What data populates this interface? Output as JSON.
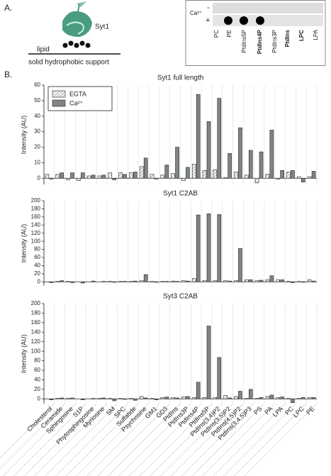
{
  "panel_a": {
    "label": "A.",
    "protein": "Syt1",
    "lipid": "lipid",
    "support": "solid hydrophobic support",
    "blot": {
      "condition": "Ca²⁺",
      "minus": "-",
      "plus": "+",
      "lanes": [
        "PC",
        "PE",
        "PtdIns5P",
        "PtdIns4P",
        "PtdIns3P",
        "PtdIns",
        "LPC",
        "LPA"
      ]
    }
  },
  "panel_b_label": "B.",
  "chart_data": [
    {
      "type": "bar",
      "title": "Syt1 full length",
      "y_label": "Intensity (AU)",
      "ylim": [
        -4,
        60
      ],
      "yticks": [
        0,
        10,
        20,
        30,
        40,
        50,
        60
      ],
      "series": [
        {
          "name": "EGTA",
          "color": "#ffffff",
          "pattern": "hatch",
          "values": [
            2.5,
            2.5,
            -1,
            -1.5,
            1.5,
            1.5,
            3.5,
            3.5,
            3.5,
            7.5,
            2.5,
            2,
            3,
            -1.5,
            9,
            5,
            5.5,
            0.5,
            4,
            2,
            -3,
            2.5,
            -0.5,
            4,
            1,
            1
          ]
        },
        {
          "name": "Ca²⁺",
          "color": "#7f8485",
          "values": [
            -0.5,
            3.5,
            3.5,
            3.5,
            2,
            2,
            -1,
            2.5,
            4,
            13,
            -0.5,
            8.5,
            20,
            7,
            54,
            36.5,
            51.5,
            16,
            32.5,
            18,
            17,
            31,
            5,
            5,
            -2.5,
            4.5
          ]
        }
      ]
    },
    {
      "type": "bar",
      "title": "Syt1 C2AB",
      "y_label": "Intensity (AU)",
      "ylim": [
        -10,
        200
      ],
      "yticks": [
        0,
        20,
        40,
        60,
        80,
        100,
        120,
        140,
        160,
        180,
        200
      ],
      "series": [
        {
          "color": "#ffffff",
          "pattern": "hatch",
          "values": [
            0,
            1,
            1,
            0,
            0,
            0,
            1,
            1,
            1,
            3,
            1,
            1,
            2,
            3,
            8,
            3,
            3,
            3,
            3,
            5,
            3,
            5,
            5,
            1,
            1,
            5
          ]
        },
        {
          "color": "#7f8485",
          "values": [
            -2,
            3,
            -2,
            -3,
            2,
            1,
            -1,
            1,
            2,
            18,
            -1,
            1,
            1,
            2,
            165,
            168,
            166,
            2,
            82,
            5,
            4,
            15,
            5,
            -2,
            -1,
            2
          ]
        }
      ]
    },
    {
      "type": "bar",
      "title": "Syt3 C2AB",
      "y_label": "Intensity (AU)",
      "ylim": [
        -10,
        200
      ],
      "yticks": [
        0,
        20,
        40,
        60,
        80,
        100,
        120,
        140,
        160,
        180,
        200
      ],
      "categories": [
        "Cholesterol",
        "Ceramide",
        "Sphingosine",
        "S1P",
        "Phytosphingosine",
        "Myriosine",
        "SM",
        "SPC",
        "Sulfatide",
        "Psychosine",
        "GM1",
        "GD3",
        "PtdIns",
        "PtdIns3P",
        "PtdIns4P",
        "PtdIns5P",
        "PtdIns(3,4)P2",
        "PtdIns(3,5)P2",
        "PtdIns(4,5)P2",
        "PtdIns(3,4,5)P3",
        "PS",
        "PA",
        "LPA",
        "PC",
        "LPC",
        "PE"
      ],
      "series": [
        {
          "color": "#ffffff",
          "pattern": "hatch",
          "values": [
            0,
            1,
            1,
            0,
            0,
            1,
            1,
            1,
            1,
            5,
            1,
            3,
            3,
            4,
            3,
            3,
            3,
            7,
            5,
            1,
            1,
            5,
            3,
            1,
            1,
            3
          ]
        },
        {
          "color": "#7f8485",
          "values": [
            -2,
            2,
            2,
            -2,
            1,
            2,
            -4,
            -1,
            -3,
            2,
            -2,
            4,
            2,
            5,
            35,
            153,
            87,
            2,
            16,
            20,
            3,
            8,
            4,
            -8,
            3,
            3
          ]
        }
      ]
    }
  ]
}
